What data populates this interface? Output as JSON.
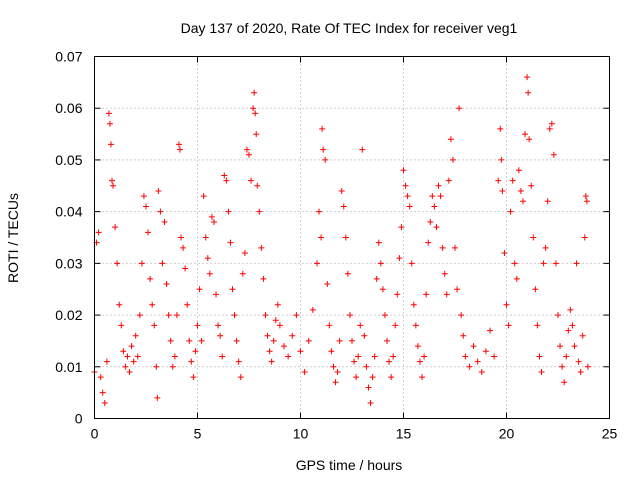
{
  "chart_data": {
    "type": "scatter",
    "title": "Day 137 of 2020, Rate Of TEC Index for receiver veg1",
    "xlabel": "GPS time / hours",
    "ylabel": "ROTI / TECUs",
    "xlim": [
      0,
      25
    ],
    "ylim": [
      0,
      0.07
    ],
    "x_ticks": [
      0,
      5,
      10,
      15,
      20,
      25
    ],
    "x_tick_labels": [
      "0",
      "5",
      "10",
      "15",
      "20",
      "25"
    ],
    "y_ticks": [
      0,
      0.01,
      0.02,
      0.03,
      0.04,
      0.05,
      0.06,
      0.07
    ],
    "y_tick_labels": [
      "0",
      "0.01",
      "0.02",
      "0.03",
      "0.04",
      "0.05",
      "0.06",
      "0.07"
    ],
    "grid": true,
    "marker": "+",
    "color": "#ff0000",
    "series": [
      {
        "name": "veg1 ROTI",
        "points": [
          [
            0.0,
            0.009
          ],
          [
            0.1,
            0.034
          ],
          [
            0.2,
            0.036
          ],
          [
            0.3,
            0.008
          ],
          [
            0.4,
            0.005
          ],
          [
            0.5,
            0.003
          ],
          [
            0.6,
            0.011
          ],
          [
            0.7,
            0.059
          ],
          [
            0.75,
            0.057
          ],
          [
            0.8,
            0.053
          ],
          [
            0.85,
            0.046
          ],
          [
            0.9,
            0.045
          ],
          [
            1.0,
            0.037
          ],
          [
            1.1,
            0.03
          ],
          [
            1.2,
            0.022
          ],
          [
            1.3,
            0.018
          ],
          [
            1.4,
            0.013
          ],
          [
            1.5,
            0.01
          ],
          [
            1.6,
            0.012
          ],
          [
            1.7,
            0.009
          ],
          [
            1.8,
            0.014
          ],
          [
            1.9,
            0.011
          ],
          [
            2.0,
            0.016
          ],
          [
            2.1,
            0.012
          ],
          [
            2.2,
            0.02
          ],
          [
            2.3,
            0.03
          ],
          [
            2.4,
            0.043
          ],
          [
            2.5,
            0.041
          ],
          [
            2.6,
            0.036
          ],
          [
            2.7,
            0.027
          ],
          [
            2.8,
            0.022
          ],
          [
            2.9,
            0.018
          ],
          [
            3.0,
            0.01
          ],
          [
            3.05,
            0.004
          ],
          [
            3.1,
            0.044
          ],
          [
            3.2,
            0.04
          ],
          [
            3.3,
            0.03
          ],
          [
            3.4,
            0.038
          ],
          [
            3.5,
            0.026
          ],
          [
            3.6,
            0.02
          ],
          [
            3.7,
            0.015
          ],
          [
            3.8,
            0.01
          ],
          [
            3.9,
            0.012
          ],
          [
            4.0,
            0.02
          ],
          [
            4.1,
            0.053
          ],
          [
            4.15,
            0.052
          ],
          [
            4.2,
            0.035
          ],
          [
            4.3,
            0.033
          ],
          [
            4.4,
            0.029
          ],
          [
            4.5,
            0.022
          ],
          [
            4.6,
            0.015
          ],
          [
            4.7,
            0.011
          ],
          [
            4.8,
            0.008
          ],
          [
            4.9,
            0.013
          ],
          [
            5.0,
            0.018
          ],
          [
            5.1,
            0.025
          ],
          [
            5.2,
            0.015
          ],
          [
            5.3,
            0.043
          ],
          [
            5.4,
            0.035
          ],
          [
            5.5,
            0.031
          ],
          [
            5.6,
            0.028
          ],
          [
            5.7,
            0.039
          ],
          [
            5.8,
            0.038
          ],
          [
            5.9,
            0.024
          ],
          [
            6.0,
            0.018
          ],
          [
            6.1,
            0.016
          ],
          [
            6.2,
            0.012
          ],
          [
            6.3,
            0.047
          ],
          [
            6.4,
            0.046
          ],
          [
            6.5,
            0.04
          ],
          [
            6.6,
            0.034
          ],
          [
            6.7,
            0.025
          ],
          [
            6.8,
            0.02
          ],
          [
            6.9,
            0.015
          ],
          [
            7.0,
            0.011
          ],
          [
            7.1,
            0.008
          ],
          [
            7.2,
            0.028
          ],
          [
            7.3,
            0.032
          ],
          [
            7.4,
            0.052
          ],
          [
            7.5,
            0.051
          ],
          [
            7.6,
            0.046
          ],
          [
            7.7,
            0.06
          ],
          [
            7.75,
            0.063
          ],
          [
            7.8,
            0.059
          ],
          [
            7.85,
            0.055
          ],
          [
            7.9,
            0.045
          ],
          [
            8.0,
            0.04
          ],
          [
            8.1,
            0.033
          ],
          [
            8.2,
            0.027
          ],
          [
            8.3,
            0.02
          ],
          [
            8.4,
            0.016
          ],
          [
            8.5,
            0.013
          ],
          [
            8.6,
            0.011
          ],
          [
            8.7,
            0.015
          ],
          [
            8.8,
            0.019
          ],
          [
            8.9,
            0.022
          ],
          [
            9.0,
            0.018
          ],
          [
            9.2,
            0.014
          ],
          [
            9.4,
            0.012
          ],
          [
            9.6,
            0.016
          ],
          [
            9.8,
            0.02
          ],
          [
            10.0,
            0.013
          ],
          [
            10.2,
            0.009
          ],
          [
            10.4,
            0.015
          ],
          [
            10.6,
            0.021
          ],
          [
            10.8,
            0.03
          ],
          [
            10.9,
            0.04
          ],
          [
            11.0,
            0.035
          ],
          [
            11.05,
            0.056
          ],
          [
            11.1,
            0.052
          ],
          [
            11.2,
            0.05
          ],
          [
            11.3,
            0.026
          ],
          [
            11.4,
            0.018
          ],
          [
            11.5,
            0.013
          ],
          [
            11.6,
            0.01
          ],
          [
            11.7,
            0.007
          ],
          [
            11.8,
            0.009
          ],
          [
            11.9,
            0.015
          ],
          [
            12.0,
            0.044
          ],
          [
            12.1,
            0.041
          ],
          [
            12.2,
            0.035
          ],
          [
            12.3,
            0.028
          ],
          [
            12.4,
            0.02
          ],
          [
            12.5,
            0.015
          ],
          [
            12.6,
            0.011
          ],
          [
            12.7,
            0.008
          ],
          [
            12.8,
            0.012
          ],
          [
            12.9,
            0.018
          ],
          [
            13.0,
            0.052
          ],
          [
            13.1,
            0.016
          ],
          [
            13.2,
            0.01
          ],
          [
            13.3,
            0.006
          ],
          [
            13.4,
            0.003
          ],
          [
            13.5,
            0.008
          ],
          [
            13.6,
            0.012
          ],
          [
            13.7,
            0.027
          ],
          [
            13.8,
            0.034
          ],
          [
            13.9,
            0.03
          ],
          [
            14.0,
            0.025
          ],
          [
            14.1,
            0.02
          ],
          [
            14.2,
            0.015
          ],
          [
            14.3,
            0.011
          ],
          [
            14.4,
            0.008
          ],
          [
            14.5,
            0.012
          ],
          [
            14.6,
            0.018
          ],
          [
            14.7,
            0.024
          ],
          [
            14.8,
            0.031
          ],
          [
            14.9,
            0.037
          ],
          [
            15.0,
            0.048
          ],
          [
            15.1,
            0.045
          ],
          [
            15.2,
            0.043
          ],
          [
            15.3,
            0.041
          ],
          [
            15.4,
            0.03
          ],
          [
            15.5,
            0.022
          ],
          [
            15.6,
            0.018
          ],
          [
            15.7,
            0.014
          ],
          [
            15.8,
            0.011
          ],
          [
            15.9,
            0.008
          ],
          [
            16.0,
            0.012
          ],
          [
            16.1,
            0.024
          ],
          [
            16.2,
            0.034
          ],
          [
            16.3,
            0.038
          ],
          [
            16.4,
            0.043
          ],
          [
            16.5,
            0.041
          ],
          [
            16.6,
            0.037
          ],
          [
            16.7,
            0.045
          ],
          [
            16.8,
            0.043
          ],
          [
            16.9,
            0.033
          ],
          [
            17.0,
            0.028
          ],
          [
            17.1,
            0.024
          ],
          [
            17.2,
            0.046
          ],
          [
            17.3,
            0.054
          ],
          [
            17.4,
            0.05
          ],
          [
            17.5,
            0.033
          ],
          [
            17.6,
            0.025
          ],
          [
            17.7,
            0.06
          ],
          [
            17.8,
            0.02
          ],
          [
            17.9,
            0.016
          ],
          [
            18.0,
            0.012
          ],
          [
            18.2,
            0.01
          ],
          [
            18.4,
            0.014
          ],
          [
            18.6,
            0.011
          ],
          [
            18.8,
            0.009
          ],
          [
            19.0,
            0.013
          ],
          [
            19.2,
            0.017
          ],
          [
            19.4,
            0.012
          ],
          [
            19.6,
            0.046
          ],
          [
            19.7,
            0.056
          ],
          [
            19.75,
            0.05
          ],
          [
            19.8,
            0.044
          ],
          [
            19.9,
            0.032
          ],
          [
            20.0,
            0.022
          ],
          [
            20.1,
            0.018
          ],
          [
            20.2,
            0.04
          ],
          [
            20.3,
            0.046
          ],
          [
            20.4,
            0.03
          ],
          [
            20.5,
            0.027
          ],
          [
            20.6,
            0.048
          ],
          [
            20.7,
            0.044
          ],
          [
            20.8,
            0.042
          ],
          [
            20.9,
            0.055
          ],
          [
            21.0,
            0.066
          ],
          [
            21.05,
            0.063
          ],
          [
            21.1,
            0.054
          ],
          [
            21.2,
            0.045
          ],
          [
            21.3,
            0.035
          ],
          [
            21.4,
            0.025
          ],
          [
            21.5,
            0.018
          ],
          [
            21.6,
            0.012
          ],
          [
            21.7,
            0.009
          ],
          [
            21.8,
            0.03
          ],
          [
            21.9,
            0.033
          ],
          [
            22.0,
            0.042
          ],
          [
            22.1,
            0.056
          ],
          [
            22.2,
            0.057
          ],
          [
            22.3,
            0.051
          ],
          [
            22.4,
            0.03
          ],
          [
            22.5,
            0.02
          ],
          [
            22.6,
            0.014
          ],
          [
            22.7,
            0.01
          ],
          [
            22.8,
            0.007
          ],
          [
            22.9,
            0.012
          ],
          [
            23.0,
            0.017
          ],
          [
            23.1,
            0.021
          ],
          [
            23.2,
            0.018
          ],
          [
            23.3,
            0.014
          ],
          [
            23.4,
            0.03
          ],
          [
            23.5,
            0.011
          ],
          [
            23.6,
            0.009
          ],
          [
            23.7,
            0.016
          ],
          [
            23.8,
            0.035
          ],
          [
            23.85,
            0.043
          ],
          [
            23.9,
            0.042
          ],
          [
            23.95,
            0.01
          ]
        ]
      }
    ]
  }
}
